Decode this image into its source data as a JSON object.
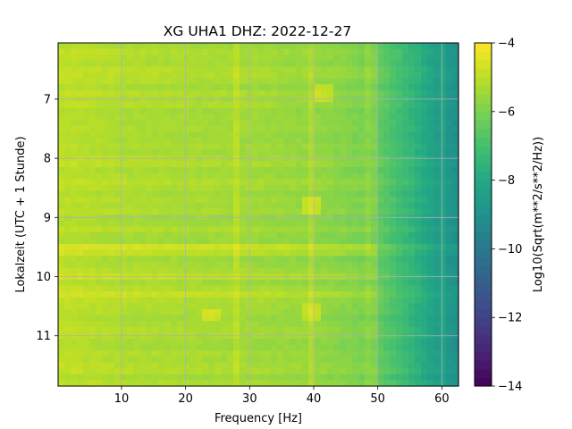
{
  "chart_data": {
    "type": "heatmap",
    "title": "XG UHA1  DHZ: 2022-12-27",
    "xlabel": "Frequency [Hz]",
    "ylabel": "Lokalzeit (UTC + 1 Stunde)",
    "colorbar_label": "Log10(Sqrt(m**2/s**2/Hz))",
    "colormap": "viridis",
    "grid": true,
    "xlim": [
      0.1,
      62.6
    ],
    "ylim": [
      11.85,
      6.05
    ],
    "y_inverted": true,
    "clim": [
      -14,
      -4
    ],
    "x_ticks": [
      10,
      20,
      30,
      40,
      50,
      60
    ],
    "y_ticks": [
      7,
      8,
      9,
      10,
      11
    ],
    "colorbar_ticks": [
      -14,
      -12,
      -10,
      -8,
      -6,
      -4
    ],
    "value_profile_by_frequency": {
      "frequency_hz": [
        0,
        10,
        20,
        30,
        40,
        45,
        48,
        50,
        53,
        56,
        58,
        60,
        62.5
      ],
      "value": [
        -5.0,
        -5.2,
        -5.3,
        -5.4,
        -5.6,
        -5.8,
        -6.0,
        -6.4,
        -7.0,
        -7.6,
        -8.1,
        -8.6,
        -9.0
      ]
    },
    "features": [
      {
        "label": "narrowband line",
        "frequency_hz": 28.0
      },
      {
        "label": "narrowband line",
        "frequency_hz": 40.0
      },
      {
        "label": "narrowband line",
        "frequency_hz": 49.0
      },
      {
        "label": "narrowband line",
        "frequency_hz": 60.0
      },
      {
        "label": "energy burst",
        "frequency_hz": 41.5,
        "time": 6.9
      },
      {
        "label": "energy burst",
        "frequency_hz": 39.5,
        "time": 8.8
      },
      {
        "label": "energy burst",
        "frequency_hz": 24.0,
        "time": 10.65
      },
      {
        "label": "energy burst",
        "frequency_hz": 39.5,
        "time": 10.6
      }
    ],
    "bands_by_time": [
      {
        "time_range": [
          9.45,
          9.65
        ],
        "offset": 0.4
      },
      {
        "time_range": [
          9.95,
          10.05
        ],
        "offset": 0.35
      },
      {
        "time_range": [
          10.25,
          10.35
        ],
        "offset": 0.3
      }
    ]
  }
}
